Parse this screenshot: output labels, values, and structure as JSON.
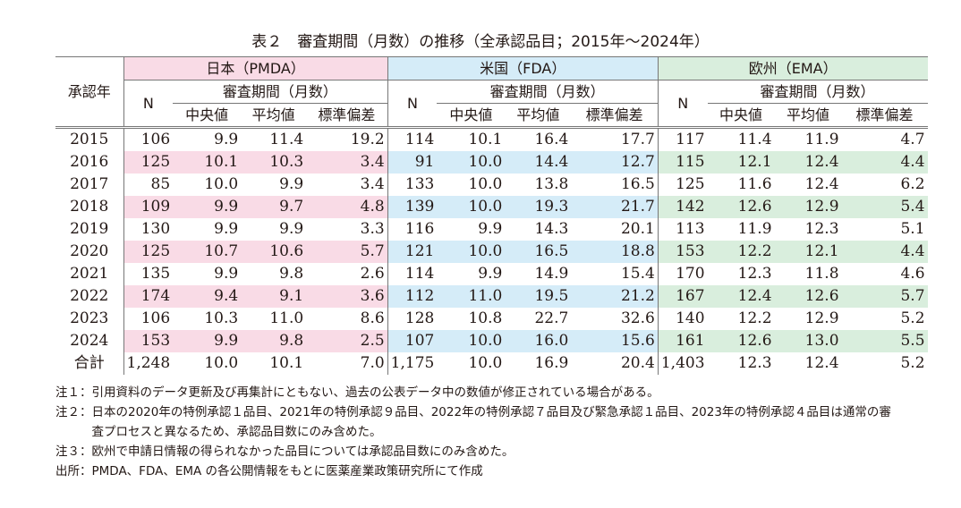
{
  "title": "表２　審査期間（月数）の推移（全承認品目；2015年〜2024年）",
  "header": {
    "year_col": "承認年",
    "regions": [
      {
        "name": "日本（PMDA）",
        "color": "#f9dbe6"
      },
      {
        "name": "米国（FDA）",
        "color": "#d5ecf8"
      },
      {
        "name": "欧州（EMA）",
        "color": "#d9eedd"
      }
    ],
    "n_label": "N",
    "period_label": "審査期間（月数）",
    "stats": [
      "中央値",
      "平均値",
      "標準偏差"
    ]
  },
  "rows": [
    {
      "year": "2015",
      "values": [
        "106",
        "9.9",
        "11.4",
        "19.2",
        "114",
        "10.1",
        "16.4",
        "17.7",
        "117",
        "11.4",
        "11.9",
        "4.7"
      ]
    },
    {
      "year": "2016",
      "values": [
        "125",
        "10.1",
        "10.3",
        "3.4",
        "91",
        "10.0",
        "14.4",
        "12.7",
        "115",
        "12.1",
        "12.4",
        "4.4"
      ]
    },
    {
      "year": "2017",
      "values": [
        "85",
        "10.0",
        "9.9",
        "3.4",
        "133",
        "10.0",
        "13.8",
        "16.5",
        "125",
        "11.6",
        "12.4",
        "6.2"
      ]
    },
    {
      "year": "2018",
      "values": [
        "109",
        "9.9",
        "9.7",
        "4.8",
        "139",
        "10.0",
        "19.3",
        "21.7",
        "142",
        "12.6",
        "12.9",
        "5.4"
      ]
    },
    {
      "year": "2019",
      "values": [
        "130",
        "9.9",
        "9.9",
        "3.3",
        "116",
        "9.9",
        "14.3",
        "20.1",
        "113",
        "11.9",
        "12.3",
        "5.1"
      ]
    },
    {
      "year": "2020",
      "values": [
        "125",
        "10.7",
        "10.6",
        "5.7",
        "121",
        "10.0",
        "16.5",
        "18.8",
        "153",
        "12.2",
        "12.1",
        "4.4"
      ]
    },
    {
      "year": "2021",
      "values": [
        "135",
        "9.9",
        "9.8",
        "2.6",
        "114",
        "9.9",
        "14.9",
        "15.4",
        "170",
        "12.3",
        "11.8",
        "4.6"
      ]
    },
    {
      "year": "2022",
      "values": [
        "174",
        "9.4",
        "9.1",
        "3.6",
        "112",
        "11.0",
        "19.5",
        "21.2",
        "167",
        "12.4",
        "12.6",
        "5.7"
      ]
    },
    {
      "year": "2023",
      "values": [
        "106",
        "10.3",
        "11.0",
        "8.6",
        "128",
        "10.8",
        "22.7",
        "32.6",
        "140",
        "12.2",
        "12.9",
        "5.2"
      ]
    },
    {
      "year": "2024",
      "values": [
        "153",
        "9.9",
        "9.8",
        "2.5",
        "107",
        "10.0",
        "16.0",
        "15.6",
        "161",
        "12.6",
        "13.0",
        "5.5"
      ]
    },
    {
      "year": "合計",
      "values": [
        "1,248",
        "10.0",
        "10.1",
        "7.0",
        "1,175",
        "10.0",
        "16.9",
        "20.4",
        "1,403",
        "12.3",
        "12.4",
        "5.2"
      ]
    }
  ],
  "notes": [
    {
      "label": "注１：",
      "text": "引用資料のデータ更新及び再集計にともない、過去の公表データ中の数値が修正されている場合がある。"
    },
    {
      "label": "注２：",
      "text": "日本の2020年の特例承認１品目、2021年の特例承認９品目、2022年の特例承認７品目及び緊急承認１品目、2023年の特例承認４品目は通常の審査プロセスと異なるため、承認品目数にのみ含めた。"
    },
    {
      "label": "注３：",
      "text": "欧州で申請日情報の得られなかった品目については承認品目数にのみ含めた。"
    },
    {
      "label": "出所：",
      "text": "PMDA、FDA、EMA の各公開情報をもとに医薬産業政策研究所にて作成"
    }
  ]
}
